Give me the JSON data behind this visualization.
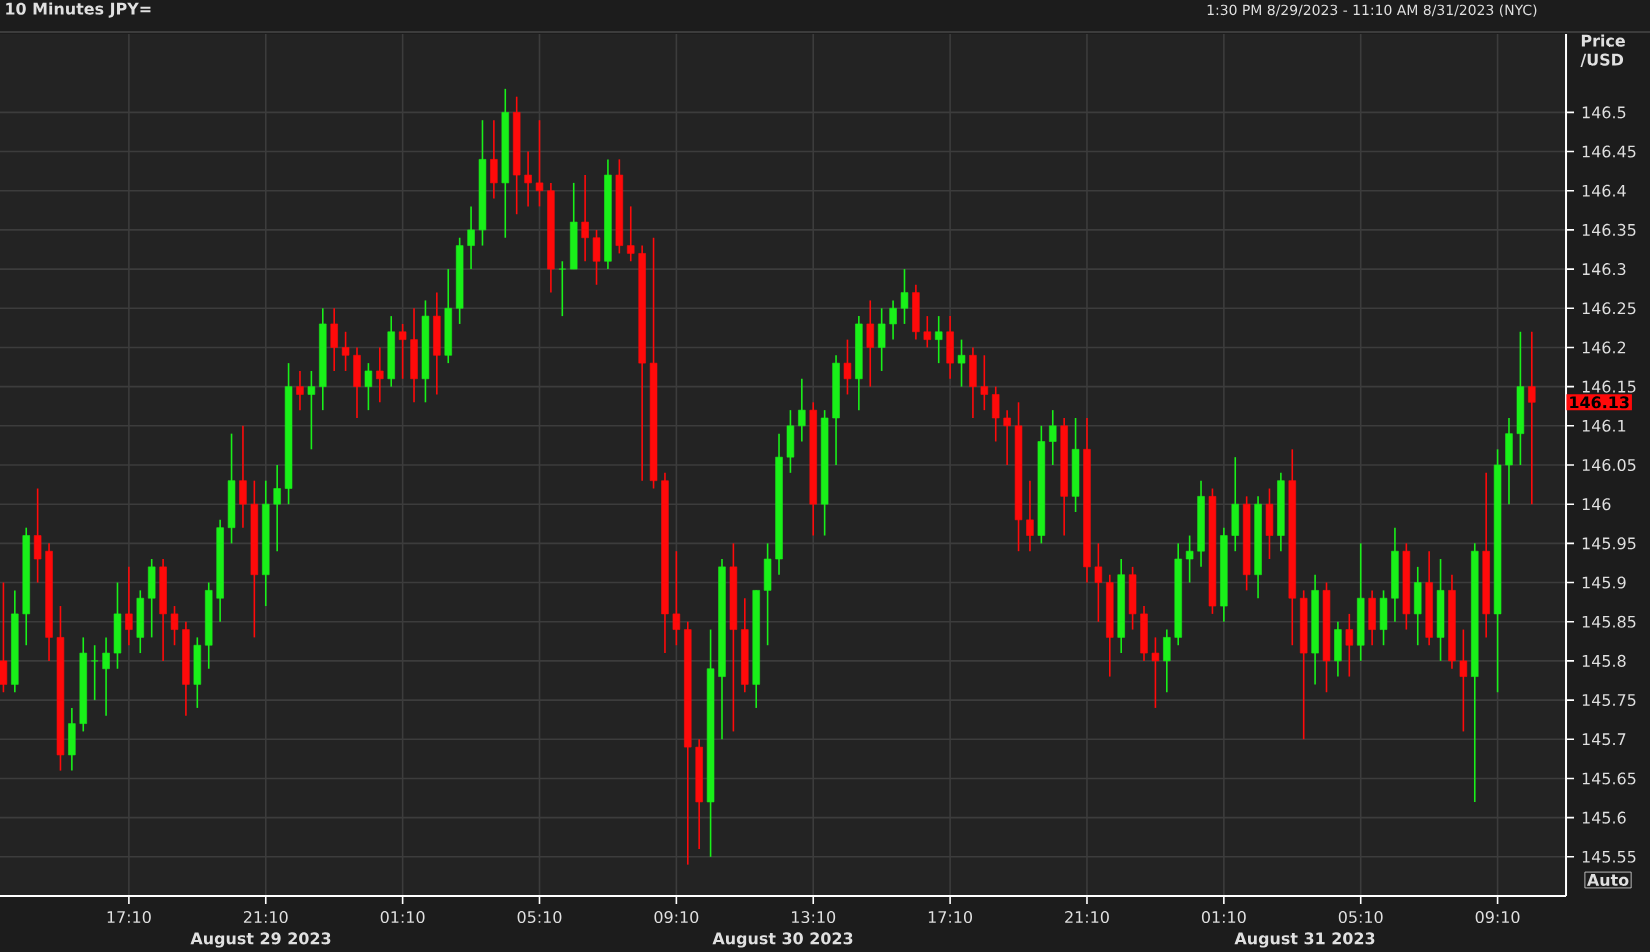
{
  "chart_data": {
    "type": "candlestick",
    "title": "10 Minutes JPY=",
    "subtitle": "1:30 PM 8/29/2023 - 11:10 AM 8/31/2023 (NYC)",
    "ylabel": "Price /USD",
    "annotations": [
      "August 29 2023",
      "August 30 2023",
      "August 31 2023",
      "146.13",
      "Auto"
    ],
    "colors": [
      "#ff0a0a",
      "#19f019",
      "#19f019",
      "#ff0a0a",
      "#ff0a0a",
      "#ff0a0a",
      "#19f019",
      "#19f019",
      "#19f019",
      "#19f019",
      "#19f019",
      "#ff0a0a",
      "#19f019",
      "#19f019",
      "#ff0a0a",
      "#ff0a0a",
      "#ff0a0a",
      "#19f019",
      "#19f019",
      "#19f019",
      "#19f019",
      "#ff0a0a",
      "#ff0a0a",
      "#19f019",
      "#19f019",
      "#19f019",
      "#ff0a0a",
      "#19f019",
      "#19f019",
      "#ff0a0a",
      "#ff0a0a",
      "#ff0a0a",
      "#19f019",
      "#ff0a0a",
      "#19f019",
      "#ff0a0a",
      "#ff0a0a",
      "#19f019",
      "#ff0a0a",
      "#19f019",
      "#19f019",
      "#19f019",
      "#19f019",
      "#ff0a0a",
      "#19f019",
      "#ff0a0a",
      "#ff0a0a",
      "#ff0a0a",
      "#ff0a0a",
      "#19f019",
      "#19f019",
      "#ff0a0a",
      "#ff0a0a",
      "#19f019",
      "#ff0a0a",
      "#ff0a0a",
      "#ff0a0a",
      "#ff0a0a",
      "#ff0a0a",
      "#ff0a0a",
      "#ff0a0a",
      "#ff0a0a",
      "#19f019",
      "#19f019",
      "#ff0a0a",
      "#ff0a0a",
      "#19f019",
      "#19f019",
      "#19f019",
      "#19f019",
      "#19f019",
      "#ff0a0a",
      "#19f019",
      "#19f019",
      "#ff0a0a",
      "#19f019",
      "#ff0a0a",
      "#19f019",
      "#19f019",
      "#19f019",
      "#ff0a0a",
      "#ff0a0a",
      "#19f019",
      "#ff0a0a",
      "#19f019",
      "#ff0a0a",
      "#ff0a0a",
      "#ff0a0a",
      "#ff0a0a",
      "#ff0a0a",
      "#ff0a0a",
      "#19f019",
      "#19f019",
      "#ff0a0a",
      "#19f019",
      "#ff0a0a",
      "#ff0a0a",
      "#ff0a0a",
      "#19f019",
      "#ff0a0a",
      "#ff0a0a",
      "#ff0a0a",
      "#19f019",
      "#19f019",
      "#19f019",
      "#19f019",
      "#ff0a0a",
      "#19f019",
      "#19f019",
      "#ff0a0a",
      "#19f019",
      "#ff0a0a",
      "#19f019",
      "#ff0a0a",
      "#ff0a0a",
      "#19f019",
      "#ff0a0a",
      "#19f019",
      "#ff0a0a",
      "#19f019",
      "#ff0a0a",
      "#19f019",
      "#19f019",
      "#ff0a0a",
      "#19f019",
      "#ff0a0a",
      "#19f019",
      "#ff0a0a",
      "#ff0a0a",
      "#19f019",
      "#ff0a0a",
      "#19f019",
      "#19f019",
      "#19f019",
      "#ff0a0a"
    ],
    "grid": true,
    "xlim": [
      "2023-08-29T13:24",
      "2023-08-31T11:10"
    ],
    "ylim": [
      145.5,
      146.6
    ],
    "xticks": [
      {
        "value": "2023-08-29T17:10",
        "label": "17:10"
      },
      {
        "value": "2023-08-29T21:10",
        "label": "21:10"
      },
      {
        "value": "2023-08-30T01:10",
        "label": "01:10"
      },
      {
        "value": "2023-08-30T05:10",
        "label": "05:10"
      },
      {
        "value": "2023-08-30T09:10",
        "label": "09:10"
      },
      {
        "value": "2023-08-30T13:10",
        "label": "13:10"
      },
      {
        "value": "2023-08-30T17:10",
        "label": "17:10"
      },
      {
        "value": "2023-08-30T21:10",
        "label": "21:10"
      },
      {
        "value": "2023-08-31T01:10",
        "label": "01:10"
      },
      {
        "value": "2023-08-31T05:10",
        "label": "05:10"
      },
      {
        "value": "2023-08-31T09:10",
        "label": "09:10"
      }
    ],
    "yticks": [
      145.55,
      145.6,
      145.65,
      145.7,
      145.75,
      145.8,
      145.85,
      145.9,
      145.95,
      146,
      146.05,
      146.1,
      146.15,
      146.2,
      146.25,
      146.3,
      146.35,
      146.4,
      146.45,
      146.5
    ],
    "x": [
      "2023-08-29T13:30",
      "2023-08-29T13:50",
      "2023-08-29T14:10",
      "2023-08-29T14:30",
      "2023-08-29T14:50",
      "2023-08-29T15:10",
      "2023-08-29T15:30",
      "2023-08-29T15:50",
      "2023-08-29T16:10",
      "2023-08-29T16:30",
      "2023-08-29T16:50",
      "2023-08-29T17:10",
      "2023-08-29T17:30",
      "2023-08-29T17:50",
      "2023-08-29T18:10",
      "2023-08-29T18:30",
      "2023-08-29T18:50",
      "2023-08-29T19:10",
      "2023-08-29T19:30",
      "2023-08-29T19:50",
      "2023-08-29T20:10",
      "2023-08-29T20:30",
      "2023-08-29T20:50",
      "2023-08-29T21:10",
      "2023-08-29T21:30",
      "2023-08-29T21:50",
      "2023-08-29T22:10",
      "2023-08-29T22:30",
      "2023-08-29T22:50",
      "2023-08-29T23:10",
      "2023-08-29T23:30",
      "2023-08-29T23:50",
      "2023-08-30T00:10",
      "2023-08-30T00:30",
      "2023-08-30T00:50",
      "2023-08-30T01:10",
      "2023-08-30T01:30",
      "2023-08-30T01:50",
      "2023-08-30T02:10",
      "2023-08-30T02:30",
      "2023-08-30T02:50",
      "2023-08-30T03:10",
      "2023-08-30T03:30",
      "2023-08-30T03:50",
      "2023-08-30T04:10",
      "2023-08-30T04:30",
      "2023-08-30T04:50",
      "2023-08-30T05:10",
      "2023-08-30T05:30",
      "2023-08-30T05:50",
      "2023-08-30T06:10",
      "2023-08-30T06:30",
      "2023-08-30T06:50",
      "2023-08-30T07:10",
      "2023-08-30T07:30",
      "2023-08-30T07:50",
      "2023-08-30T08:10",
      "2023-08-30T08:30",
      "2023-08-30T08:50",
      "2023-08-30T09:10",
      "2023-08-30T09:30",
      "2023-08-30T09:50",
      "2023-08-30T10:10",
      "2023-08-30T10:30",
      "2023-08-30T10:50",
      "2023-08-30T11:10",
      "2023-08-30T11:30",
      "2023-08-30T11:50",
      "2023-08-30T12:10",
      "2023-08-30T12:30",
      "2023-08-30T12:50",
      "2023-08-30T13:10",
      "2023-08-30T13:30",
      "2023-08-30T13:50",
      "2023-08-30T14:10",
      "2023-08-30T14:30",
      "2023-08-30T14:50",
      "2023-08-30T15:10",
      "2023-08-30T15:30",
      "2023-08-30T15:50",
      "2023-08-30T16:10",
      "2023-08-30T16:30",
      "2023-08-30T16:50",
      "2023-08-30T17:10",
      "2023-08-30T17:30",
      "2023-08-30T17:50",
      "2023-08-30T18:10",
      "2023-08-30T18:30",
      "2023-08-30T18:50",
      "2023-08-30T19:10",
      "2023-08-30T19:30",
      "2023-08-30T19:50",
      "2023-08-30T20:10",
      "2023-08-30T20:30",
      "2023-08-30T20:50",
      "2023-08-30T21:10",
      "2023-08-30T21:30",
      "2023-08-30T21:50",
      "2023-08-30T22:10",
      "2023-08-30T22:30",
      "2023-08-30T22:50",
      "2023-08-30T23:10",
      "2023-08-30T23:30",
      "2023-08-30T23:50",
      "2023-08-31T00:10",
      "2023-08-31T00:30",
      "2023-08-31T00:50",
      "2023-08-31T01:10",
      "2023-08-31T01:30",
      "2023-08-31T01:50",
      "2023-08-31T02:10",
      "2023-08-31T02:30",
      "2023-08-31T02:50",
      "2023-08-31T03:10",
      "2023-08-31T03:30",
      "2023-08-31T03:50",
      "2023-08-31T04:10",
      "2023-08-31T04:30",
      "2023-08-31T04:50",
      "2023-08-31T05:10",
      "2023-08-31T05:30",
      "2023-08-31T05:50",
      "2023-08-31T06:10",
      "2023-08-31T06:30",
      "2023-08-31T06:50",
      "2023-08-31T07:10",
      "2023-08-31T07:30",
      "2023-08-31T07:50",
      "2023-08-31T08:10",
      "2023-08-31T08:30",
      "2023-08-31T08:50",
      "2023-08-31T09:10",
      "2023-08-31T09:30",
      "2023-08-31T09:50",
      "2023-08-31T10:10"
    ],
    "ohlc": [
      [
        145.8,
        145.9,
        145.76,
        145.77
      ],
      [
        145.77,
        145.89,
        145.76,
        145.86
      ],
      [
        145.86,
        145.97,
        145.82,
        145.96
      ],
      [
        145.96,
        146.02,
        145.9,
        145.93
      ],
      [
        145.94,
        145.95,
        145.8,
        145.83
      ],
      [
        145.83,
        145.87,
        145.66,
        145.68
      ],
      [
        145.68,
        145.74,
        145.66,
        145.72
      ],
      [
        145.72,
        145.83,
        145.71,
        145.81
      ],
      [
        145.8,
        145.82,
        145.75,
        145.8
      ],
      [
        145.79,
        145.83,
        145.73,
        145.81
      ],
      [
        145.81,
        145.9,
        145.79,
        145.86
      ],
      [
        145.86,
        145.92,
        145.82,
        145.84
      ],
      [
        145.83,
        145.89,
        145.81,
        145.88
      ],
      [
        145.88,
        145.93,
        145.83,
        145.92
      ],
      [
        145.92,
        145.93,
        145.8,
        145.86
      ],
      [
        145.86,
        145.87,
        145.82,
        145.84
      ],
      [
        145.84,
        145.85,
        145.73,
        145.77
      ],
      [
        145.77,
        145.83,
        145.74,
        145.82
      ],
      [
        145.82,
        145.9,
        145.79,
        145.89
      ],
      [
        145.88,
        145.98,
        145.85,
        145.97
      ],
      [
        145.97,
        146.09,
        145.95,
        146.03
      ],
      [
        146.03,
        146.1,
        145.97,
        146.0
      ],
      [
        146.0,
        146.03,
        145.83,
        145.91
      ],
      [
        145.91,
        146.03,
        145.87,
        146.0
      ],
      [
        146.0,
        146.05,
        145.94,
        146.02
      ],
      [
        146.02,
        146.18,
        146.0,
        146.15
      ],
      [
        146.15,
        146.17,
        146.12,
        146.14
      ],
      [
        146.14,
        146.17,
        146.07,
        146.15
      ],
      [
        146.15,
        146.25,
        146.12,
        146.23
      ],
      [
        146.23,
        146.25,
        146.17,
        146.2
      ],
      [
        146.2,
        146.22,
        146.17,
        146.19
      ],
      [
        146.19,
        146.2,
        146.11,
        146.15
      ],
      [
        146.15,
        146.18,
        146.12,
        146.17
      ],
      [
        146.17,
        146.2,
        146.13,
        146.16
      ],
      [
        146.16,
        146.24,
        146.15,
        146.22
      ],
      [
        146.22,
        146.23,
        146.16,
        146.21
      ],
      [
        146.21,
        146.25,
        146.13,
        146.16
      ],
      [
        146.16,
        146.26,
        146.13,
        146.24
      ],
      [
        146.24,
        146.27,
        146.14,
        146.19
      ],
      [
        146.19,
        146.3,
        146.18,
        146.25
      ],
      [
        146.25,
        146.34,
        146.23,
        146.33
      ],
      [
        146.33,
        146.38,
        146.3,
        146.35
      ],
      [
        146.35,
        146.49,
        146.33,
        146.44
      ],
      [
        146.44,
        146.49,
        146.39,
        146.41
      ],
      [
        146.41,
        146.53,
        146.34,
        146.5
      ],
      [
        146.5,
        146.52,
        146.37,
        146.42
      ],
      [
        146.42,
        146.45,
        146.38,
        146.41
      ],
      [
        146.41,
        146.49,
        146.38,
        146.4
      ],
      [
        146.4,
        146.41,
        146.27,
        146.3
      ],
      [
        146.3,
        146.31,
        146.24,
        146.3
      ],
      [
        146.3,
        146.41,
        146.3,
        146.36
      ],
      [
        146.36,
        146.42,
        146.31,
        146.34
      ],
      [
        146.34,
        146.35,
        146.28,
        146.31
      ],
      [
        146.31,
        146.44,
        146.3,
        146.42
      ],
      [
        146.42,
        146.44,
        146.32,
        146.33
      ],
      [
        146.33,
        146.38,
        146.31,
        146.32
      ],
      [
        146.32,
        146.33,
        146.03,
        146.18
      ],
      [
        146.18,
        146.34,
        146.02,
        146.03
      ],
      [
        146.03,
        146.04,
        145.81,
        145.86
      ],
      [
        145.86,
        145.94,
        145.82,
        145.84
      ],
      [
        145.84,
        145.85,
        145.54,
        145.69
      ],
      [
        145.69,
        145.7,
        145.56,
        145.62
      ],
      [
        145.62,
        145.84,
        145.55,
        145.79
      ],
      [
        145.78,
        145.93,
        145.7,
        145.92
      ],
      [
        145.92,
        145.95,
        145.71,
        145.84
      ],
      [
        145.84,
        145.88,
        145.76,
        145.77
      ],
      [
        145.77,
        145.89,
        145.74,
        145.89
      ],
      [
        145.89,
        145.95,
        145.82,
        145.93
      ],
      [
        145.93,
        146.09,
        145.91,
        146.06
      ],
      [
        146.06,
        146.12,
        146.04,
        146.1
      ],
      [
        146.1,
        146.16,
        146.08,
        146.12
      ],
      [
        146.12,
        146.13,
        145.96,
        146.0
      ],
      [
        146.0,
        146.12,
        145.96,
        146.11
      ],
      [
        146.11,
        146.19,
        146.05,
        146.18
      ],
      [
        146.18,
        146.21,
        146.14,
        146.16
      ],
      [
        146.16,
        146.24,
        146.12,
        146.23
      ],
      [
        146.23,
        146.26,
        146.15,
        146.2
      ],
      [
        146.2,
        146.25,
        146.17,
        146.23
      ],
      [
        146.23,
        146.26,
        146.21,
        146.25
      ],
      [
        146.25,
        146.3,
        146.23,
        146.27
      ],
      [
        146.27,
        146.28,
        146.21,
        146.22
      ],
      [
        146.22,
        146.24,
        146.2,
        146.21
      ],
      [
        146.21,
        146.24,
        146.18,
        146.22
      ],
      [
        146.22,
        146.24,
        146.16,
        146.18
      ],
      [
        146.18,
        146.21,
        146.15,
        146.19
      ],
      [
        146.19,
        146.2,
        146.11,
        146.15
      ],
      [
        146.15,
        146.19,
        146.12,
        146.14
      ],
      [
        146.14,
        146.15,
        146.08,
        146.11
      ],
      [
        146.11,
        146.12,
        146.05,
        146.1
      ],
      [
        146.1,
        146.13,
        145.94,
        145.98
      ],
      [
        145.98,
        146.03,
        145.94,
        145.96
      ],
      [
        145.96,
        146.1,
        145.95,
        146.08
      ],
      [
        146.08,
        146.12,
        146.05,
        146.1
      ],
      [
        146.1,
        146.11,
        145.96,
        146.01
      ],
      [
        146.01,
        146.11,
        145.99,
        146.07
      ],
      [
        146.07,
        146.11,
        145.9,
        145.92
      ],
      [
        145.92,
        145.95,
        145.85,
        145.9
      ],
      [
        145.9,
        145.91,
        145.78,
        145.83
      ],
      [
        145.83,
        145.93,
        145.81,
        145.91
      ],
      [
        145.91,
        145.92,
        145.84,
        145.86
      ],
      [
        145.86,
        145.87,
        145.8,
        145.81
      ],
      [
        145.81,
        145.83,
        145.74,
        145.8
      ],
      [
        145.8,
        145.84,
        145.76,
        145.83
      ],
      [
        145.83,
        145.95,
        145.82,
        145.93
      ],
      [
        145.93,
        145.96,
        145.9,
        145.94
      ],
      [
        145.94,
        146.03,
        145.92,
        146.01
      ],
      [
        146.01,
        146.02,
        145.86,
        145.87
      ],
      [
        145.87,
        145.97,
        145.85,
        145.96
      ],
      [
        145.96,
        146.06,
        145.94,
        146.0
      ],
      [
        146.0,
        146.01,
        145.89,
        145.91
      ],
      [
        145.91,
        146.01,
        145.88,
        146.0
      ],
      [
        146.0,
        146.02,
        145.93,
        145.96
      ],
      [
        145.96,
        146.04,
        145.94,
        146.03
      ],
      [
        146.03,
        146.07,
        145.82,
        145.88
      ],
      [
        145.88,
        145.89,
        145.7,
        145.81
      ],
      [
        145.81,
        145.91,
        145.77,
        145.89
      ],
      [
        145.89,
        145.9,
        145.76,
        145.8
      ],
      [
        145.8,
        145.85,
        145.78,
        145.84
      ],
      [
        145.84,
        145.86,
        145.78,
        145.82
      ],
      [
        145.82,
        145.95,
        145.8,
        145.88
      ],
      [
        145.88,
        145.89,
        145.82,
        145.84
      ],
      [
        145.84,
        145.89,
        145.82,
        145.88
      ],
      [
        145.88,
        145.97,
        145.85,
        145.94
      ],
      [
        145.94,
        145.95,
        145.84,
        145.86
      ],
      [
        145.86,
        145.92,
        145.82,
        145.9
      ],
      [
        145.9,
        145.94,
        145.82,
        145.83
      ],
      [
        145.83,
        145.93,
        145.8,
        145.89
      ],
      [
        145.89,
        145.91,
        145.79,
        145.8
      ],
      [
        145.8,
        145.84,
        145.71,
        145.78
      ],
      [
        145.78,
        145.95,
        145.62,
        145.94
      ],
      [
        145.94,
        146.04,
        145.83,
        145.86
      ],
      [
        145.86,
        146.07,
        145.76,
        146.05
      ],
      [
        146.05,
        146.11,
        146.0,
        146.09
      ],
      [
        146.09,
        146.22,
        146.05,
        146.15
      ],
      [
        146.15,
        146.22,
        146.0,
        146.13
      ]
    ]
  }
}
